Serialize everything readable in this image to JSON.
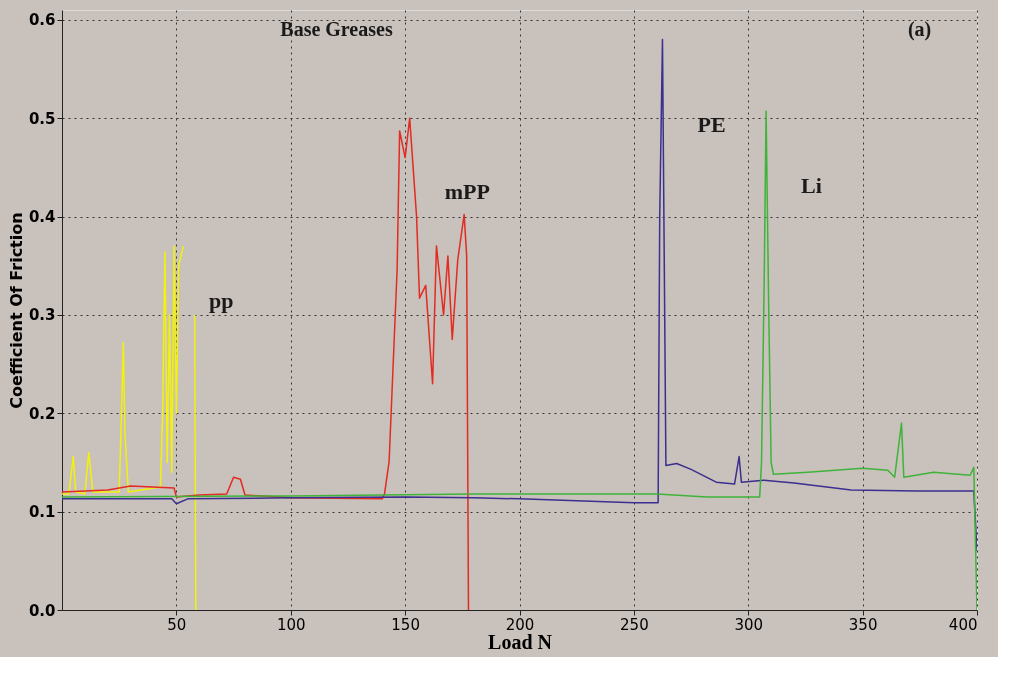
{
  "chart_data": {
    "type": "line",
    "xlabel": "Load N",
    "ylabel": "Coefficient Of Friction",
    "annotations": [
      "Base Greases",
      "(a)"
    ],
    "xlim": [
      0,
      400
    ],
    "xticks": [
      50,
      100,
      150,
      200,
      250,
      300,
      350,
      400
    ],
    "ylim": [
      0,
      0.61
    ],
    "yticks": [
      {
        "value": 0,
        "label": "0.0"
      },
      0.1,
      0.2,
      0.3,
      0.4,
      0.5,
      0.6
    ],
    "grid": true,
    "legend": false,
    "line_style": "solid",
    "marker": "none",
    "series": [
      {
        "name": "pp",
        "color": "#f2f20a",
        "x": [
          0,
          3,
          4.9,
          6,
          10,
          11.7,
          13.5,
          25,
          26,
          26.8,
          27.5,
          29,
          43,
          44,
          45,
          46,
          47,
          48,
          49,
          50,
          51,
          52,
          53,
          54,
          57,
          58,
          58.5
        ],
        "values": [
          0.118,
          0.118,
          0.156,
          0.12,
          0.118,
          0.16,
          0.12,
          0.12,
          0.2,
          0.272,
          0.18,
          0.12,
          0.125,
          0.2,
          0.364,
          0.15,
          0.3,
          0.14,
          0.37,
          0.2,
          0.35,
          0.36,
          0.37,
          null,
          null,
          0.3,
          0.0
        ]
      },
      {
        "name": "mPP",
        "color": "#e32b22",
        "x": [
          0,
          20,
          30,
          49,
          50,
          60,
          72,
          75,
          78,
          80,
          100,
          140,
          141,
          143,
          146.5,
          147.6,
          150,
          152,
          153.4,
          155,
          156.3,
          159,
          162,
          163.7,
          166.8,
          168.7,
          170.6,
          173,
          175.8,
          176.9,
          177.7
        ],
        "values": [
          0.12,
          0.122,
          0.126,
          0.124,
          0.115,
          0.117,
          0.118,
          0.135,
          0.133,
          0.117,
          0.114,
          0.113,
          0.118,
          0.151,
          0.346,
          0.487,
          0.46,
          0.5,
          0.453,
          0.4,
          0.317,
          0.33,
          0.23,
          0.37,
          0.3,
          0.36,
          0.275,
          0.356,
          0.402,
          0.36,
          0.0
        ]
      },
      {
        "name": "PE",
        "color": "#3b2f8f",
        "x": [
          0,
          48,
          50,
          55,
          100,
          150,
          180,
          200,
          250,
          260.6,
          261.3,
          262.5,
          264,
          268.7,
          275,
          286,
          294,
          296,
          297,
          306.8,
          320,
          345,
          373.6,
          398.6,
          400
        ],
        "values": [
          0.113,
          0.113,
          0.108,
          0.113,
          0.114,
          0.115,
          0.114,
          0.113,
          0.109,
          0.109,
          0.4,
          0.58,
          0.147,
          0.149,
          0.143,
          0.13,
          0.128,
          0.156,
          0.13,
          0.132,
          0.129,
          0.122,
          0.121,
          0.121,
          0.06
        ]
      },
      {
        "name": "Li",
        "color": "#3fb33a",
        "x": [
          0,
          100,
          140,
          180,
          260,
          282,
          305,
          305.8,
          307,
          307.8,
          308.9,
          310,
          311,
          326,
          350,
          361,
          364,
          367,
          368,
          381,
          397,
          398.6,
          400
        ],
        "values": [
          0.115,
          0.116,
          0.117,
          0.118,
          0.118,
          0.115,
          0.115,
          0.15,
          0.34,
          0.507,
          0.314,
          0.15,
          0.138,
          0.14,
          0.144,
          0.142,
          0.135,
          0.19,
          0.135,
          0.14,
          0.137,
          0.145,
          0.0
        ]
      }
    ]
  }
}
